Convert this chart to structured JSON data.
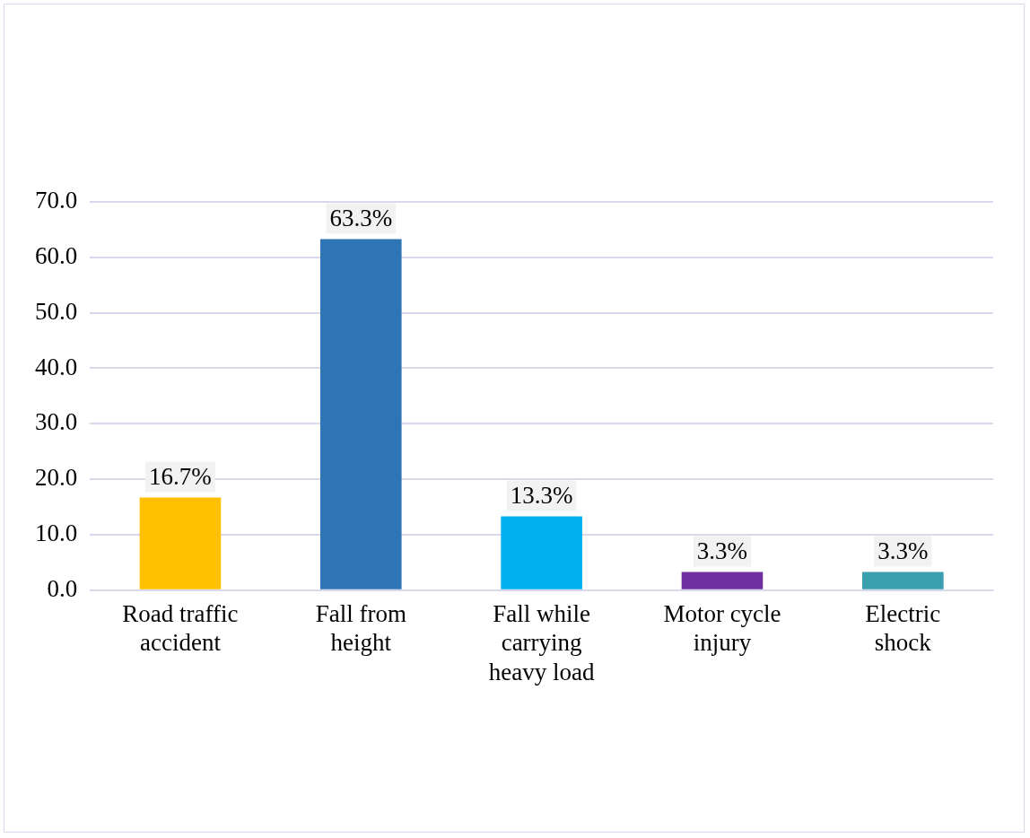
{
  "chart_data": {
    "type": "bar",
    "categories": [
      "Road traffic accident",
      "Fall from height",
      "Fall while carrying heavy load",
      "Motor cycle injury",
      "Electric shock"
    ],
    "values": [
      16.7,
      63.3,
      13.3,
      3.3,
      3.3
    ],
    "colors": [
      "#ffc000",
      "#2e75b6",
      "#00b0f0",
      "#7030a0",
      "#3a9fae"
    ],
    "value_labels": [
      "16.7%",
      "63.3%",
      "13.3%",
      "3.3%",
      "3.3%"
    ],
    "ylim": [
      0,
      70
    ],
    "yticks": [
      {
        "value": 0,
        "label": "0.0"
      },
      {
        "value": 10,
        "label": "10.0"
      },
      {
        "value": 20,
        "label": "20.0"
      },
      {
        "value": 30,
        "label": "30.0"
      },
      {
        "value": 40,
        "label": "40.0"
      },
      {
        "value": 50,
        "label": "50.0"
      },
      {
        "value": 60,
        "label": "60.0"
      },
      {
        "value": 70,
        "label": "70.0"
      }
    ],
    "grid": "y",
    "legend": false
  }
}
